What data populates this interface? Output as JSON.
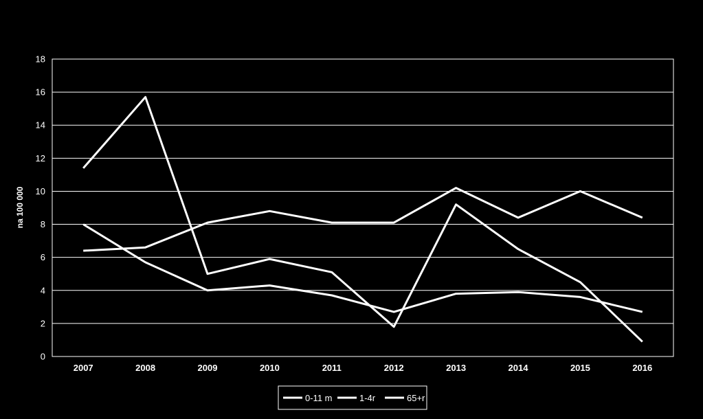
{
  "chart_data": {
    "type": "line",
    "title": "",
    "xlabel": "",
    "ylabel": "na 100 000",
    "x": [
      "2007",
      "2008",
      "2009",
      "2010",
      "2011",
      "2012",
      "2013",
      "2014",
      "2015",
      "2016"
    ],
    "ylim": [
      0,
      18
    ],
    "yticks": [
      0,
      2,
      4,
      6,
      8,
      10,
      12,
      14,
      16,
      18
    ],
    "grid": true,
    "legend_position": "bottom",
    "series": [
      {
        "name": "0-11 m",
        "values": [
          11.4,
          15.7,
          5.0,
          5.9,
          5.1,
          1.8,
          9.2,
          6.5,
          4.5,
          0.9
        ],
        "color": "#ffffff"
      },
      {
        "name": "1-4r",
        "values": [
          8.0,
          5.7,
          4.0,
          4.3,
          3.7,
          2.7,
          3.8,
          3.9,
          3.6,
          2.7
        ],
        "color": "#ffffff"
      },
      {
        "name": "65+r",
        "values": [
          6.4,
          6.6,
          8.1,
          8.8,
          8.1,
          8.1,
          10.2,
          8.4,
          10.0,
          8.4
        ],
        "color": "#ffffff"
      }
    ]
  }
}
